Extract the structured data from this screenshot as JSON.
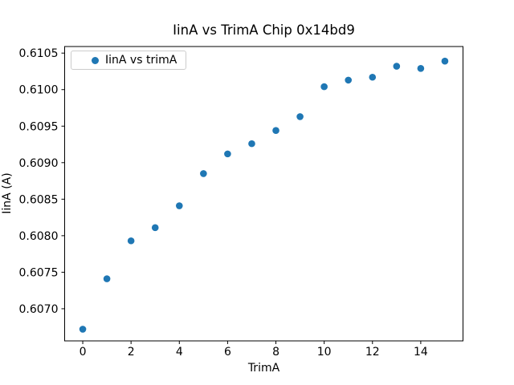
{
  "figure": {
    "background": "#ffffff"
  },
  "chart_data": {
    "type": "scatter",
    "title": "IinA vs TrimA Chip 0x14bd9",
    "xlabel": "TrimA",
    "ylabel": "IinA (A)",
    "legend": {
      "label": "IinA vs trimA",
      "position": "upper left",
      "border_color": "#cccccc"
    },
    "x": [
      0,
      1,
      2,
      3,
      4,
      5,
      6,
      7,
      8,
      9,
      10,
      11,
      12,
      13,
      14,
      15
    ],
    "series": [
      {
        "name": "IinA vs trimA",
        "values": [
          0.60672,
          0.60741,
          0.60793,
          0.60811,
          0.60841,
          0.60885,
          0.60912,
          0.60926,
          0.60944,
          0.60963,
          0.61004,
          0.61013,
          0.61017,
          0.61032,
          0.61029,
          0.61039
        ]
      }
    ],
    "xlim": [
      -0.75,
      15.75
    ],
    "ylim": [
      0.60656,
      0.61059
    ],
    "xticks": {
      "values": [
        0,
        2,
        4,
        6,
        8,
        10,
        12,
        14
      ],
      "labels": [
        "0",
        "2",
        "4",
        "6",
        "8",
        "10",
        "12",
        "14"
      ]
    },
    "yticks": {
      "values": [
        0.607,
        0.6075,
        0.608,
        0.6085,
        0.609,
        0.6095,
        0.61,
        0.6105
      ],
      "labels": [
        "0.6070",
        "0.6075",
        "0.6080",
        "0.6085",
        "0.6090",
        "0.6095",
        "0.6100",
        "0.6105"
      ]
    },
    "grid": false,
    "marker_color": "#1f77b4",
    "axis_color": "#000000"
  }
}
